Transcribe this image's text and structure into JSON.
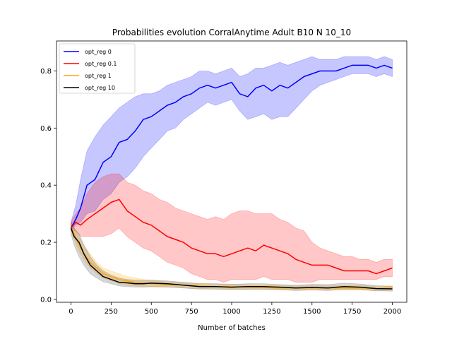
{
  "chart_data": {
    "type": "line",
    "title": "Probabilities evolution CorralAnytime Adult B10 N 10_10",
    "xlabel": "Number of batches",
    "ylabel": "",
    "xlim": [
      -90,
      2090
    ],
    "ylim": [
      -0.01,
      0.905
    ],
    "xticks": [
      0,
      250,
      500,
      750,
      1000,
      1250,
      1500,
      1750,
      2000
    ],
    "yticks": [
      0.0,
      0.2,
      0.4,
      0.6,
      0.8
    ],
    "ytick_labels": [
      "0.0",
      "0.2",
      "0.4",
      "0.6",
      "0.8"
    ],
    "grid": false,
    "legend_position": "top-left",
    "series": [
      {
        "name": "opt_reg 0",
        "color": "#0000ff",
        "band_color": "#0000ff",
        "x": [
          0,
          30,
          60,
          100,
          150,
          200,
          250,
          300,
          350,
          400,
          450,
          500,
          550,
          600,
          650,
          700,
          750,
          800,
          850,
          900,
          950,
          1000,
          1050,
          1100,
          1150,
          1200,
          1250,
          1300,
          1350,
          1400,
          1450,
          1500,
          1550,
          1600,
          1650,
          1700,
          1750,
          1800,
          1850,
          1900,
          1950,
          2000
        ],
        "values": [
          0.25,
          0.28,
          0.32,
          0.4,
          0.42,
          0.48,
          0.5,
          0.55,
          0.56,
          0.59,
          0.63,
          0.64,
          0.66,
          0.68,
          0.69,
          0.71,
          0.72,
          0.74,
          0.75,
          0.74,
          0.75,
          0.76,
          0.72,
          0.71,
          0.74,
          0.75,
          0.73,
          0.75,
          0.74,
          0.76,
          0.78,
          0.79,
          0.8,
          0.8,
          0.8,
          0.81,
          0.82,
          0.82,
          0.82,
          0.81,
          0.82,
          0.81
        ],
        "upper": [
          0.27,
          0.33,
          0.42,
          0.52,
          0.57,
          0.61,
          0.64,
          0.67,
          0.69,
          0.71,
          0.72,
          0.72,
          0.73,
          0.75,
          0.76,
          0.77,
          0.78,
          0.8,
          0.8,
          0.79,
          0.8,
          0.81,
          0.78,
          0.79,
          0.81,
          0.81,
          0.82,
          0.83,
          0.82,
          0.83,
          0.84,
          0.85,
          0.84,
          0.84,
          0.84,
          0.85,
          0.85,
          0.85,
          0.85,
          0.84,
          0.85,
          0.84
        ],
        "lower": [
          0.24,
          0.26,
          0.27,
          0.3,
          0.31,
          0.35,
          0.37,
          0.41,
          0.43,
          0.46,
          0.5,
          0.53,
          0.56,
          0.59,
          0.6,
          0.63,
          0.65,
          0.67,
          0.69,
          0.68,
          0.69,
          0.7,
          0.66,
          0.63,
          0.64,
          0.65,
          0.63,
          0.64,
          0.64,
          0.67,
          0.7,
          0.73,
          0.75,
          0.76,
          0.77,
          0.78,
          0.79,
          0.79,
          0.79,
          0.78,
          0.79,
          0.78
        ]
      },
      {
        "name": "opt_reg 0.1",
        "color": "#ff0000",
        "band_color": "#ff0000",
        "x": [
          0,
          30,
          60,
          100,
          150,
          200,
          250,
          300,
          350,
          400,
          450,
          500,
          550,
          600,
          650,
          700,
          750,
          800,
          850,
          900,
          950,
          1000,
          1050,
          1100,
          1150,
          1200,
          1250,
          1300,
          1350,
          1400,
          1450,
          1500,
          1550,
          1600,
          1650,
          1700,
          1750,
          1800,
          1850,
          1900,
          1950,
          2000
        ],
        "values": [
          0.25,
          0.27,
          0.26,
          0.28,
          0.3,
          0.32,
          0.34,
          0.35,
          0.31,
          0.29,
          0.27,
          0.26,
          0.24,
          0.22,
          0.21,
          0.2,
          0.18,
          0.17,
          0.16,
          0.16,
          0.15,
          0.16,
          0.17,
          0.18,
          0.17,
          0.19,
          0.18,
          0.17,
          0.16,
          0.14,
          0.13,
          0.12,
          0.12,
          0.12,
          0.11,
          0.1,
          0.1,
          0.1,
          0.1,
          0.09,
          0.1,
          0.11
        ],
        "upper": [
          0.27,
          0.3,
          0.32,
          0.37,
          0.41,
          0.43,
          0.44,
          0.44,
          0.41,
          0.4,
          0.38,
          0.37,
          0.35,
          0.34,
          0.32,
          0.31,
          0.3,
          0.29,
          0.28,
          0.29,
          0.28,
          0.3,
          0.31,
          0.31,
          0.3,
          0.3,
          0.3,
          0.28,
          0.27,
          0.25,
          0.24,
          0.2,
          0.18,
          0.17,
          0.16,
          0.15,
          0.15,
          0.14,
          0.14,
          0.13,
          0.14,
          0.14
        ],
        "lower": [
          0.24,
          0.24,
          0.22,
          0.22,
          0.22,
          0.22,
          0.23,
          0.25,
          0.22,
          0.2,
          0.18,
          0.17,
          0.15,
          0.13,
          0.12,
          0.11,
          0.09,
          0.08,
          0.07,
          0.07,
          0.06,
          0.07,
          0.07,
          0.07,
          0.07,
          0.08,
          0.07,
          0.07,
          0.07,
          0.06,
          0.06,
          0.06,
          0.07,
          0.07,
          0.07,
          0.07,
          0.07,
          0.07,
          0.07,
          0.07,
          0.08,
          0.08
        ]
      },
      {
        "name": "opt_reg 1",
        "color": "#ffa500",
        "band_color": "#ffa500",
        "x": [
          0,
          20,
          50,
          80,
          120,
          160,
          200,
          250,
          300,
          350,
          400,
          450,
          500,
          600,
          700,
          800,
          900,
          1000,
          1100,
          1200,
          1300,
          1400,
          1500,
          1600,
          1700,
          1800,
          1900,
          2000
        ],
        "values": [
          0.25,
          0.23,
          0.19,
          0.16,
          0.13,
          0.11,
          0.09,
          0.08,
          0.07,
          0.065,
          0.06,
          0.058,
          0.055,
          0.052,
          0.05,
          0.047,
          0.045,
          0.045,
          0.043,
          0.042,
          0.04,
          0.04,
          0.04,
          0.04,
          0.04,
          0.04,
          0.038,
          0.04
        ],
        "upper": [
          0.27,
          0.25,
          0.22,
          0.19,
          0.16,
          0.13,
          0.11,
          0.1,
          0.09,
          0.08,
          0.075,
          0.07,
          0.067,
          0.062,
          0.06,
          0.056,
          0.054,
          0.054,
          0.052,
          0.05,
          0.049,
          0.048,
          0.049,
          0.048,
          0.048,
          0.049,
          0.047,
          0.048
        ],
        "lower": [
          0.24,
          0.21,
          0.17,
          0.14,
          0.11,
          0.09,
          0.075,
          0.065,
          0.055,
          0.05,
          0.047,
          0.045,
          0.043,
          0.042,
          0.04,
          0.038,
          0.036,
          0.036,
          0.035,
          0.034,
          0.033,
          0.033,
          0.033,
          0.033,
          0.033,
          0.033,
          0.031,
          0.032
        ]
      },
      {
        "name": "opt_reg 10",
        "color": "#000000",
        "band_color": "#444444",
        "x": [
          0,
          20,
          50,
          80,
          120,
          160,
          200,
          250,
          300,
          350,
          400,
          450,
          500,
          600,
          700,
          800,
          900,
          1000,
          1100,
          1200,
          1300,
          1400,
          1500,
          1600,
          1700,
          1800,
          1900,
          2000
        ],
        "values": [
          0.25,
          0.22,
          0.2,
          0.16,
          0.12,
          0.1,
          0.08,
          0.07,
          0.06,
          0.058,
          0.055,
          0.055,
          0.057,
          0.055,
          0.05,
          0.045,
          0.045,
          0.043,
          0.045,
          0.045,
          0.043,
          0.04,
          0.042,
          0.04,
          0.045,
          0.043,
          0.038,
          0.037
        ],
        "upper": [
          0.27,
          0.25,
          0.23,
          0.19,
          0.15,
          0.12,
          0.1,
          0.085,
          0.075,
          0.07,
          0.068,
          0.067,
          0.068,
          0.065,
          0.06,
          0.055,
          0.055,
          0.053,
          0.055,
          0.055,
          0.052,
          0.05,
          0.053,
          0.052,
          0.057,
          0.054,
          0.048,
          0.046
        ],
        "lower": [
          0.23,
          0.19,
          0.15,
          0.12,
          0.09,
          0.075,
          0.062,
          0.055,
          0.047,
          0.045,
          0.043,
          0.043,
          0.045,
          0.044,
          0.04,
          0.036,
          0.036,
          0.034,
          0.035,
          0.036,
          0.034,
          0.031,
          0.033,
          0.031,
          0.035,
          0.034,
          0.03,
          0.029
        ]
      }
    ]
  }
}
